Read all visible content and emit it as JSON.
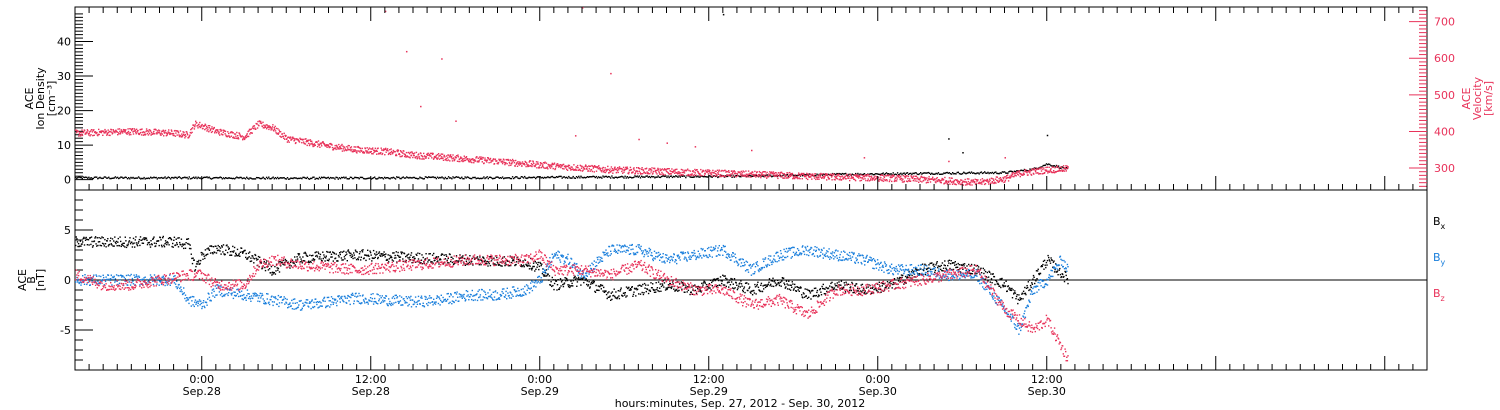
{
  "colors": {
    "black": "#000000",
    "blue": "#1a7fdc",
    "red": "#e8325a"
  },
  "x_axis": {
    "title": "hours:minutes, Sep. 27, 2012 - Sep. 30, 2012",
    "range_hours": [
      0,
      96
    ],
    "ticks": [
      {
        "h": 9,
        "time": "0:00",
        "date": "Sep.28"
      },
      {
        "h": 21,
        "time": "12:00",
        "date": "Sep.28"
      },
      {
        "h": 33,
        "time": "0:00",
        "date": "Sep.29"
      },
      {
        "h": 45,
        "time": "12:00",
        "date": "Sep.29"
      },
      {
        "h": 57,
        "time": "0:00",
        "date": "Sep.30"
      },
      {
        "h": 69,
        "time": "12:00",
        "date": "Sep.30"
      }
    ]
  },
  "chart_data": [
    {
      "type": "scatter",
      "panel": "top",
      "left_axis": {
        "label_lines": [
          "ACE",
          "Ion Density",
          "[cm⁻³]"
        ],
        "ylim": [
          -3,
          50
        ],
        "ticks": [
          0,
          10,
          20,
          30,
          40
        ]
      },
      "right_axis": {
        "label_lines": [
          "ACE",
          "Velocity",
          "[km/s]"
        ],
        "ylim": [
          240,
          740
        ],
        "ticks": [
          300,
          400,
          500,
          600,
          700
        ]
      },
      "series": [
        {
          "axis": "left",
          "color": "#000000",
          "points": [
            [
              0,
              0.5
            ],
            [
              8,
              0.5
            ],
            [
              16,
              0.4
            ],
            [
              24,
              0.5
            ],
            [
              32,
              0.6
            ],
            [
              40,
              0.8
            ],
            [
              48,
              1
            ],
            [
              54,
              1.5
            ],
            [
              60,
              1.8
            ],
            [
              66,
              2
            ],
            [
              68,
              3
            ],
            [
              69,
              4.5
            ],
            [
              70.5,
              3
            ]
          ]
        },
        {
          "axis": "right",
          "color": "#e8325a",
          "points": [
            [
              0,
              395
            ],
            [
              4,
              400
            ],
            [
              7,
              395
            ],
            [
              8,
              390
            ],
            [
              8.5,
              420
            ],
            [
              9,
              415
            ],
            [
              10,
              400
            ],
            [
              12,
              385
            ],
            [
              13,
              420
            ],
            [
              14,
              410
            ],
            [
              15,
              380
            ],
            [
              18,
              360
            ],
            [
              20,
              350
            ],
            [
              22,
              345
            ],
            [
              24,
              335
            ],
            [
              26,
              330
            ],
            [
              30,
              318
            ],
            [
              34,
              305
            ],
            [
              38,
              295
            ],
            [
              42,
              290
            ],
            [
              46,
              285
            ],
            [
              50,
              280
            ],
            [
              54,
              275
            ],
            [
              58,
              272
            ],
            [
              62,
              265
            ],
            [
              64,
              260
            ],
            [
              66,
              270
            ],
            [
              67,
              285
            ],
            [
              69,
              295
            ],
            [
              70.5,
              298
            ]
          ]
        }
      ]
    },
    {
      "type": "scatter",
      "panel": "bottom",
      "left_axis": {
        "label_lines": [
          "ACE",
          "B",
          "[nT]"
        ],
        "ylim": [
          -9,
          9
        ],
        "ticks": [
          -5,
          0,
          5
        ]
      },
      "series": [
        {
          "name": "Bx",
          "color": "#000000",
          "points": [
            [
              0,
              3.8
            ],
            [
              4,
              3.8
            ],
            [
              7,
              3.8
            ],
            [
              8,
              3.6
            ],
            [
              8.5,
              1.2
            ],
            [
              9,
              2.5
            ],
            [
              10,
              3.2
            ],
            [
              12,
              2.6
            ],
            [
              14,
              1
            ],
            [
              16,
              2.2
            ],
            [
              20,
              2.5
            ],
            [
              24,
              2.2
            ],
            [
              28,
              2
            ],
            [
              32,
              1.8
            ],
            [
              33,
              1.2
            ],
            [
              34,
              -0.5
            ],
            [
              36,
              0
            ],
            [
              38,
              -1.5
            ],
            [
              40,
              -1
            ],
            [
              42,
              -0.5
            ],
            [
              44,
              -1
            ],
            [
              46,
              0
            ],
            [
              48,
              -1
            ],
            [
              50,
              0
            ],
            [
              52,
              -1.5
            ],
            [
              54,
              -0.5
            ],
            [
              56,
              -1
            ],
            [
              58,
              -0.5
            ],
            [
              60,
              1
            ],
            [
              62,
              1.5
            ],
            [
              64,
              1
            ],
            [
              66,
              -0.5
            ],
            [
              67,
              -2
            ],
            [
              68,
              0
            ],
            [
              69,
              2
            ],
            [
              70.5,
              0
            ]
          ]
        },
        {
          "name": "By",
          "color": "#1a7fdc",
          "points": [
            [
              0,
              0
            ],
            [
              4,
              0
            ],
            [
              7,
              0
            ],
            [
              8,
              -2
            ],
            [
              9,
              -2.5
            ],
            [
              10,
              -1
            ],
            [
              12,
              -1.5
            ],
            [
              14,
              -2
            ],
            [
              16,
              -2.5
            ],
            [
              18,
              -2.2
            ],
            [
              20,
              -1.8
            ],
            [
              22,
              -2
            ],
            [
              24,
              -2.2
            ],
            [
              26,
              -2
            ],
            [
              28,
              -1.5
            ],
            [
              30,
              -1.5
            ],
            [
              32,
              -1
            ],
            [
              33,
              0
            ],
            [
              34,
              2.5
            ],
            [
              35,
              2
            ],
            [
              36,
              0.5
            ],
            [
              38,
              3
            ],
            [
              40,
              3
            ],
            [
              42,
              2
            ],
            [
              44,
              2.5
            ],
            [
              46,
              3
            ],
            [
              48,
              1
            ],
            [
              50,
              2.5
            ],
            [
              52,
              3
            ],
            [
              54,
              2.5
            ],
            [
              56,
              2
            ],
            [
              58,
              1
            ],
            [
              60,
              1
            ],
            [
              62,
              0.5
            ],
            [
              64,
              0.5
            ],
            [
              66,
              -3
            ],
            [
              67,
              -5
            ],
            [
              68,
              -1
            ],
            [
              69,
              0
            ],
            [
              70,
              2
            ],
            [
              70.5,
              1
            ]
          ]
        },
        {
          "name": "Bz",
          "color": "#e8325a",
          "points": [
            [
              0,
              0.5
            ],
            [
              2,
              -0.5
            ],
            [
              4,
              -0.5
            ],
            [
              6,
              0
            ],
            [
              8,
              0.5
            ],
            [
              9,
              0.5
            ],
            [
              10,
              -0.5
            ],
            [
              12,
              -0.5
            ],
            [
              13,
              1.5
            ],
            [
              14,
              2
            ],
            [
              16,
              1.5
            ],
            [
              20,
              1
            ],
            [
              24,
              1.5
            ],
            [
              28,
              2
            ],
            [
              32,
              2
            ],
            [
              33,
              2.5
            ],
            [
              34,
              1
            ],
            [
              36,
              1
            ],
            [
              38,
              0.5
            ],
            [
              40,
              1.5
            ],
            [
              42,
              0
            ],
            [
              44,
              -1
            ],
            [
              46,
              -1
            ],
            [
              48,
              -2.5
            ],
            [
              50,
              -2
            ],
            [
              52,
              -3.5
            ],
            [
              54,
              -1
            ],
            [
              56,
              -1
            ],
            [
              58,
              -0.5
            ],
            [
              60,
              0
            ],
            [
              62,
              0.5
            ],
            [
              64,
              1
            ],
            [
              66,
              -3
            ],
            [
              67,
              -4
            ],
            [
              68,
              -5
            ],
            [
              69,
              -4
            ],
            [
              70.5,
              -8
            ]
          ]
        }
      ],
      "legend": {
        "position": "right",
        "entries": [
          {
            "base": "B",
            "sub": "x",
            "color": "#000000"
          },
          {
            "base": "B",
            "sub": "y",
            "color": "#1a7fdc"
          },
          {
            "base": "B",
            "sub": "z",
            "color": "#e8325a"
          }
        ]
      }
    }
  ]
}
